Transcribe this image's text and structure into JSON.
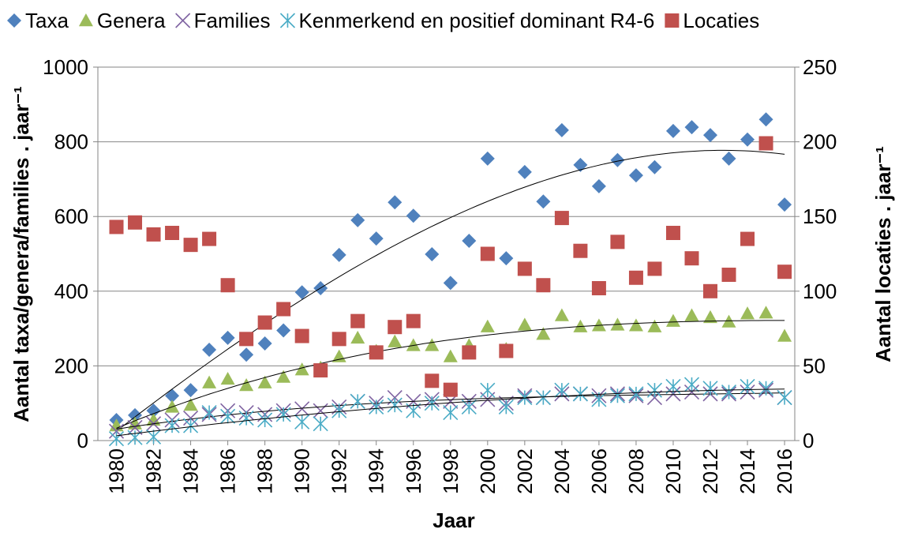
{
  "chart_data": {
    "type": "scatter",
    "x": [
      1980,
      1981,
      1982,
      1983,
      1984,
      1985,
      1986,
      1987,
      1988,
      1989,
      1990,
      1991,
      1992,
      1993,
      1994,
      1995,
      1996,
      1997,
      1998,
      1999,
      2000,
      2001,
      2002,
      2003,
      2004,
      2005,
      2006,
      2007,
      2008,
      2009,
      2010,
      2011,
      2012,
      2013,
      2014,
      2015,
      2016
    ],
    "series": [
      {
        "name": "Taxa",
        "color": "#4f81bd",
        "marker": "diamond",
        "trendline": true,
        "values": [
          55,
          68,
          80,
          120,
          135,
          243,
          275,
          230,
          260,
          295,
          397,
          408,
          497,
          590,
          541,
          638,
          602,
          499,
          422,
          535,
          755,
          488,
          719,
          640,
          831,
          738,
          681,
          751,
          710,
          732,
          829,
          839,
          818,
          755,
          806,
          860,
          632
        ]
      },
      {
        "name": "Genera",
        "color": "#9bbb59",
        "marker": "triangle",
        "trendline": true,
        "values": [
          40,
          45,
          55,
          90,
          95,
          155,
          165,
          148,
          155,
          170,
          190,
          195,
          225,
          275,
          240,
          265,
          255,
          255,
          225,
          255,
          305,
          245,
          310,
          285,
          335,
          305,
          308,
          310,
          308,
          305,
          320,
          335,
          330,
          318,
          340,
          342,
          280
        ]
      },
      {
        "name": "Families",
        "color": "#8064a2",
        "marker": "x",
        "trendline": true,
        "values": [
          25,
          35,
          45,
          55,
          60,
          70,
          80,
          75,
          70,
          80,
          85,
          80,
          90,
          105,
          100,
          115,
          105,
          110,
          105,
          105,
          110,
          100,
          120,
          115,
          125,
          125,
          120,
          125,
          120,
          115,
          125,
          130,
          125,
          125,
          130,
          135,
          115
        ]
      },
      {
        "name": "Kenmerkend en positief dominant R4-6",
        "color": "#4bacc6",
        "marker": "asterisk",
        "trendline": true,
        "values": [
          5,
          8,
          10,
          40,
          40,
          75,
          65,
          60,
          55,
          70,
          50,
          45,
          80,
          105,
          90,
          95,
          80,
          100,
          75,
          90,
          135,
          90,
          115,
          115,
          135,
          125,
          110,
          120,
          125,
          135,
          145,
          150,
          140,
          130,
          145,
          140,
          115
        ]
      },
      {
        "name": "Locaties",
        "color": "#c0504d",
        "marker": "square",
        "trendline": false,
        "axis": "y2",
        "values": [
          143,
          146,
          138,
          139,
          131,
          135,
          104,
          68,
          79,
          88,
          70,
          47,
          68,
          80,
          59,
          76,
          80,
          40,
          34,
          59,
          125,
          60,
          115,
          104,
          149,
          127,
          102,
          133,
          109,
          115,
          139,
          122,
          100,
          111,
          135,
          199,
          113
        ]
      }
    ],
    "x_label": "Jaar",
    "y_label": "Aantal taxa/genera/families . jaar⁻¹",
    "y2_label": "Aantal locaties . jaar⁻¹",
    "xlim": [
      1979,
      2016.55
    ],
    "xticks": [
      1980,
      1982,
      1984,
      1986,
      1988,
      1990,
      1992,
      1994,
      1996,
      1998,
      2000,
      2002,
      2004,
      2006,
      2008,
      2010,
      2012,
      2014,
      2016
    ],
    "ylim": [
      0,
      1000
    ],
    "yticks": [
      0,
      200,
      400,
      600,
      800,
      1000
    ],
    "y2lim": [
      0,
      250
    ],
    "y2ticks": [
      0,
      50,
      100,
      150,
      200,
      250
    ],
    "grid": true,
    "legend": "top"
  }
}
